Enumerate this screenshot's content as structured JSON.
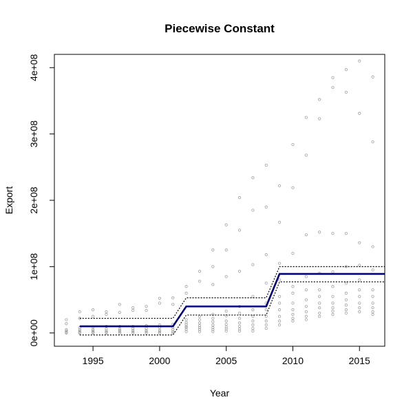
{
  "chart_data": {
    "type": "scatter",
    "title": "Piecewise Constant",
    "xlabel": "Year",
    "ylabel": "Export",
    "xlim": [
      1992.1,
      2016.9
    ],
    "ylim": [
      -20000000,
      420000000
    ],
    "x_ticks": [
      1995,
      2000,
      2005,
      2010,
      2015
    ],
    "x_tick_labels": [
      "1995",
      "2000",
      "2005",
      "2010",
      "2015"
    ],
    "y_ticks": [
      0,
      100000000,
      200000000,
      300000000,
      400000000
    ],
    "y_tick_labels": [
      "0e+00",
      "1e+08",
      "2e+08",
      "3e+08",
      "4e+08"
    ],
    "grid": false,
    "colors": {
      "points": "#9e9e9e",
      "fit": "#000080",
      "band": "#000000"
    },
    "points_by_year": [
      {
        "year": 1993,
        "values": [
          20000000,
          14000000,
          5000000,
          3000000,
          1000000,
          0
        ]
      },
      {
        "year": 1994,
        "values": [
          32000000,
          22000000,
          8000000,
          5000000,
          3000000,
          1000000,
          0
        ]
      },
      {
        "year": 1995,
        "values": [
          35000000,
          25000000,
          9000000,
          5000000,
          3000000,
          1000000,
          0
        ]
      },
      {
        "year": 1996,
        "values": [
          32000000,
          28000000,
          10000000,
          6000000,
          3000000,
          1000000,
          0
        ]
      },
      {
        "year": 1997,
        "values": [
          43000000,
          31000000,
          10000000,
          6000000,
          4000000,
          2000000,
          0
        ]
      },
      {
        "year": 1998,
        "values": [
          38000000,
          34000000,
          10000000,
          7000000,
          4000000,
          2000000,
          0
        ]
      },
      {
        "year": 1999,
        "values": [
          40000000,
          34000000,
          11000000,
          7000000,
          4000000,
          2000000,
          0
        ]
      },
      {
        "year": 2000,
        "values": [
          52000000,
          45000000,
          12000000,
          8000000,
          4000000,
          2000000,
          0
        ]
      },
      {
        "year": 2001,
        "values": [
          53000000,
          43000000,
          13000000,
          8000000,
          5000000,
          2000000,
          0
        ]
      },
      {
        "year": 2002,
        "values": [
          70000000,
          60000000,
          20000000,
          16000000,
          13000000,
          10000000,
          8000000,
          5000000,
          2000000
        ]
      },
      {
        "year": 2003,
        "values": [
          93000000,
          78000000,
          25000000,
          20000000,
          15000000,
          11000000,
          8000000,
          5000000,
          2000000
        ]
      },
      {
        "year": 2004,
        "values": [
          125000000,
          100000000,
          73000000,
          28000000,
          22000000,
          17000000,
          12000000,
          8000000,
          5000000,
          2000000
        ]
      },
      {
        "year": 2005,
        "values": [
          163000000,
          125000000,
          85000000,
          33000000,
          26000000,
          18000000,
          13000000,
          9000000,
          6000000,
          3000000
        ]
      },
      {
        "year": 2006,
        "values": [
          204000000,
          155000000,
          93000000,
          40000000,
          30000000,
          22000000,
          15000000,
          10000000,
          6000000,
          3000000
        ]
      },
      {
        "year": 2007,
        "values": [
          234000000,
          185000000,
          103000000,
          55000000,
          35000000,
          25000000,
          18000000,
          12000000,
          7000000,
          3000000
        ]
      },
      {
        "year": 2008,
        "values": [
          253000000,
          190000000,
          118000000,
          75000000,
          45000000,
          35000000,
          25000000,
          18000000,
          12000000,
          7000000
        ]
      },
      {
        "year": 2009,
        "values": [
          222000000,
          167000000,
          105000000,
          80000000,
          55000000,
          45000000,
          35000000,
          25000000,
          18000000,
          12000000
        ]
      },
      {
        "year": 2010,
        "values": [
          284000000,
          219000000,
          120000000,
          70000000,
          60000000,
          45000000,
          35000000,
          28000000,
          22000000,
          18000000
        ]
      },
      {
        "year": 2011,
        "values": [
          325000000,
          268000000,
          148000000,
          85000000,
          65000000,
          50000000,
          40000000,
          32000000,
          25000000,
          20000000
        ]
      },
      {
        "year": 2012,
        "values": [
          352000000,
          323000000,
          152000000,
          90000000,
          65000000,
          55000000,
          45000000,
          38000000,
          30000000,
          25000000
        ]
      },
      {
        "year": 2013,
        "values": [
          385000000,
          370000000,
          150000000,
          92000000,
          70000000,
          55000000,
          45000000,
          38000000,
          33000000,
          28000000
        ]
      },
      {
        "year": 2014,
        "values": [
          397000000,
          363000000,
          150000000,
          100000000,
          75000000,
          60000000,
          50000000,
          42000000,
          35000000,
          30000000
        ]
      },
      {
        "year": 2015,
        "values": [
          410000000,
          331000000,
          136000000,
          102000000,
          80000000,
          65000000,
          55000000,
          45000000,
          38000000,
          32000000
        ]
      },
      {
        "year": 2016,
        "values": [
          386000000,
          288000000,
          130000000,
          95000000,
          65000000,
          55000000,
          45000000,
          38000000,
          32000000,
          28000000
        ]
      }
    ],
    "fit_line": {
      "x": [
        1994,
        2001,
        2002,
        2008,
        2009,
        2016.9
      ],
      "y": [
        10000000,
        10000000,
        40000000,
        40000000,
        89000000,
        89000000
      ]
    },
    "upper_band": {
      "x": [
        1994,
        2001,
        2002,
        2008,
        2009,
        2016.9
      ],
      "y": [
        22000000,
        22000000,
        53000000,
        53000000,
        100000000,
        100000000
      ]
    },
    "lower_band": {
      "x": [
        1994,
        2001,
        2002,
        2008,
        2009,
        2016.9
      ],
      "y": [
        -3000000,
        -3000000,
        27000000,
        27000000,
        77000000,
        77000000
      ]
    }
  }
}
